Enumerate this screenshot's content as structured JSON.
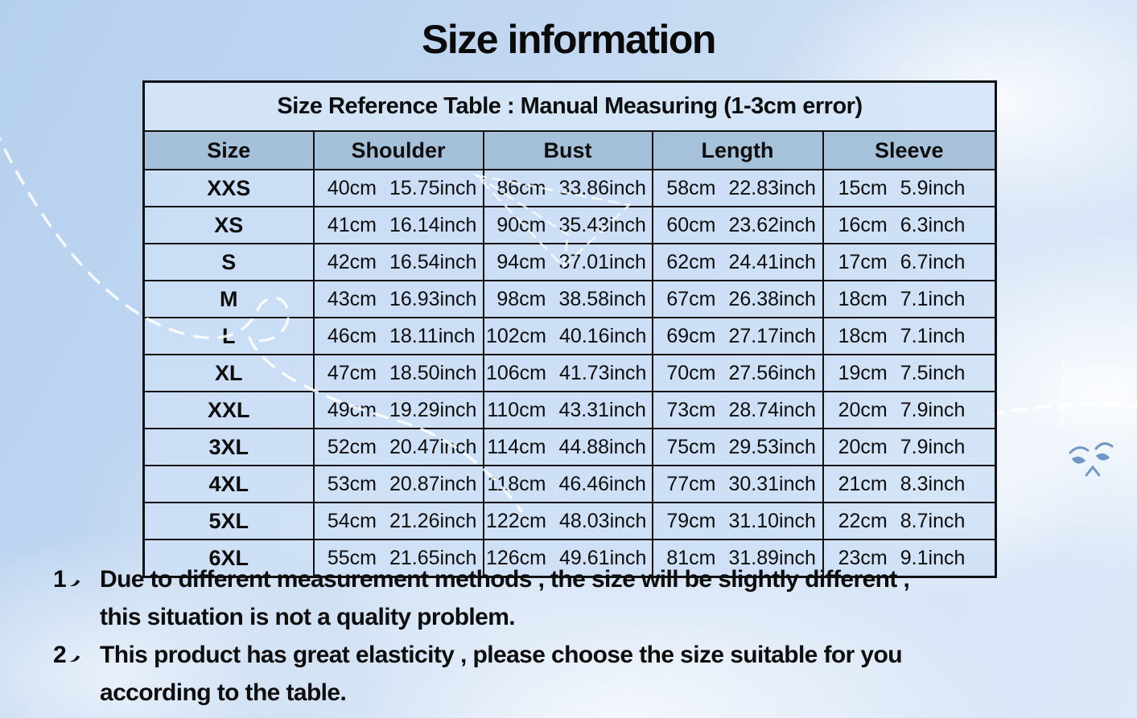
{
  "title": "Size information",
  "table": {
    "caption": "Size Reference Table : Manual Measuring (1-3cm error)",
    "columns": [
      "Size",
      "Shoulder",
      "Bust",
      "Length",
      "Sleeve"
    ],
    "rows": [
      {
        "size": "XXS",
        "measurements": [
          {
            "cm": "40cm",
            "inch": "15.75inch"
          },
          {
            "cm": "86cm",
            "inch": "33.86inch"
          },
          {
            "cm": "58cm",
            "inch": "22.83inch"
          },
          {
            "cm": "15cm",
            "inch": "5.9inch"
          }
        ]
      },
      {
        "size": "XS",
        "measurements": [
          {
            "cm": "41cm",
            "inch": "16.14inch"
          },
          {
            "cm": "90cm",
            "inch": "35.43inch"
          },
          {
            "cm": "60cm",
            "inch": "23.62inch"
          },
          {
            "cm": "16cm",
            "inch": "6.3inch"
          }
        ]
      },
      {
        "size": "S",
        "measurements": [
          {
            "cm": "42cm",
            "inch": "16.54inch"
          },
          {
            "cm": "94cm",
            "inch": "37.01inch"
          },
          {
            "cm": "62cm",
            "inch": "24.41inch"
          },
          {
            "cm": "17cm",
            "inch": "6.7inch"
          }
        ]
      },
      {
        "size": "M",
        "measurements": [
          {
            "cm": "43cm",
            "inch": "16.93inch"
          },
          {
            "cm": "98cm",
            "inch": "38.58inch"
          },
          {
            "cm": "67cm",
            "inch": "26.38inch"
          },
          {
            "cm": "18cm",
            "inch": "7.1inch"
          }
        ]
      },
      {
        "size": "L",
        "measurements": [
          {
            "cm": "46cm",
            "inch": "18.11inch"
          },
          {
            "cm": "102cm",
            "inch": "40.16inch"
          },
          {
            "cm": "69cm",
            "inch": "27.17inch"
          },
          {
            "cm": "18cm",
            "inch": "7.1inch"
          }
        ]
      },
      {
        "size": "XL",
        "measurements": [
          {
            "cm": "47cm",
            "inch": "18.50inch"
          },
          {
            "cm": "106cm",
            "inch": "41.73inch"
          },
          {
            "cm": "70cm",
            "inch": "27.56inch"
          },
          {
            "cm": "19cm",
            "inch": "7.5inch"
          }
        ]
      },
      {
        "size": "XXL",
        "measurements": [
          {
            "cm": "49cm",
            "inch": "19.29inch"
          },
          {
            "cm": "110cm",
            "inch": "43.31inch"
          },
          {
            "cm": "73cm",
            "inch": "28.74inch"
          },
          {
            "cm": "20cm",
            "inch": "7.9inch"
          }
        ]
      },
      {
        "size": "3XL",
        "measurements": [
          {
            "cm": "52cm",
            "inch": "20.47inch"
          },
          {
            "cm": "114cm",
            "inch": "44.88inch"
          },
          {
            "cm": "75cm",
            "inch": "29.53inch"
          },
          {
            "cm": "20cm",
            "inch": "7.9inch"
          }
        ]
      },
      {
        "size": "4XL",
        "measurements": [
          {
            "cm": "53cm",
            "inch": "20.87inch"
          },
          {
            "cm": "118cm",
            "inch": "46.46inch"
          },
          {
            "cm": "77cm",
            "inch": "30.31inch"
          },
          {
            "cm": "21cm",
            "inch": "8.3inch"
          }
        ]
      },
      {
        "size": "5XL",
        "measurements": [
          {
            "cm": "54cm",
            "inch": "21.26inch"
          },
          {
            "cm": "122cm",
            "inch": "48.03inch"
          },
          {
            "cm": "79cm",
            "inch": "31.10inch"
          },
          {
            "cm": "22cm",
            "inch": "8.7inch"
          }
        ]
      },
      {
        "size": "6XL",
        "measurements": [
          {
            "cm": "55cm",
            "inch": "21.65inch"
          },
          {
            "cm": "126cm",
            "inch": "49.61inch"
          },
          {
            "cm": "81cm",
            "inch": "31.89inch"
          },
          {
            "cm": "23cm",
            "inch": "9.1inch"
          }
        ]
      }
    ]
  },
  "notes": [
    {
      "marker": "1、",
      "number": "1",
      "lines": [
        "Due to different measurement methods , the size will be slightly different ,",
        "this situation is not a quality problem."
      ]
    },
    {
      "marker": "2、",
      "number": "2",
      "lines": [
        "This product has great elasticity , please choose the size suitable for you",
        "according to the table."
      ]
    }
  ],
  "colors": {
    "header_row_bg": "#a4c0d9",
    "caption_row_bg": "#d5e5f8",
    "data_row_bg": "#cde0f6",
    "table_border": "#111111",
    "text": "#0d0d0d",
    "sky_blue": "#b5d0ee",
    "cloud_white": "#ffffff",
    "doodle_blue": "#5b87be"
  }
}
